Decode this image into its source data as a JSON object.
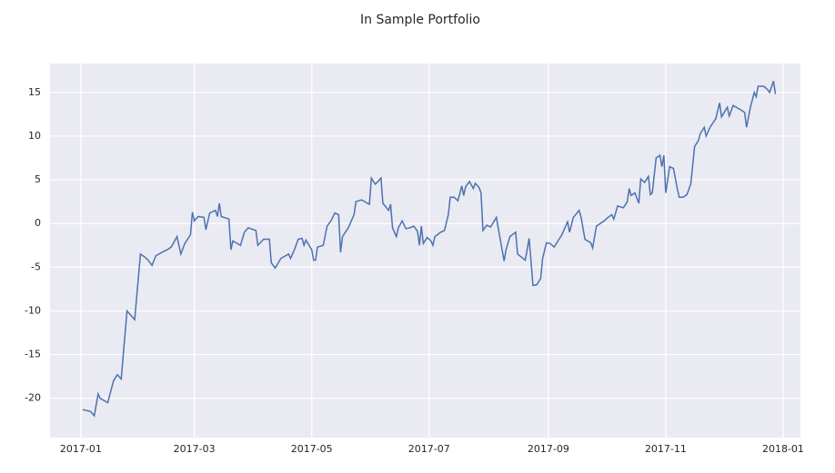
{
  "chart_data": {
    "type": "line",
    "title": "In Sample Portfolio",
    "x": [
      1,
      5,
      7,
      9,
      10,
      14,
      17,
      19,
      21,
      24,
      26,
      28,
      31,
      33,
      35,
      37,
      39,
      43,
      45,
      47,
      50,
      52,
      54,
      57,
      58,
      59,
      61,
      64,
      65,
      67,
      70,
      71,
      72,
      73,
      77,
      78,
      79,
      83,
      85,
      87,
      91,
      92,
      95,
      98,
      99,
      101,
      104,
      108,
      109,
      111,
      113,
      115,
      116,
      117,
      120,
      121,
      122,
      123,
      126,
      128,
      130,
      132,
      134,
      135,
      136,
      139,
      142,
      143,
      146,
      149,
      150,
      151,
      153,
      154,
      156,
      157,
      160,
      161,
      162,
      164,
      165,
      167,
      169,
      171,
      173,
      175,
      176,
      177,
      178,
      180,
      182,
      183,
      184,
      187,
      189,
      191,
      192,
      194,
      196,
      198,
      199,
      200,
      202,
      204,
      205,
      207,
      208,
      209,
      211,
      213,
      216,
      217,
      220,
      221,
      223,
      226,
      227,
      231,
      233,
      235,
      237,
      239,
      240,
      242,
      244,
      246,
      248,
      250,
      253,
      254,
      256,
      259,
      260,
      262,
      265,
      266,
      268,
      270,
      272,
      274,
      276,
      277,
      279,
      282,
      284,
      285,
      286,
      288,
      290,
      291,
      293,
      295,
      296,
      297,
      299,
      301,
      302,
      303,
      304,
      306,
      308,
      310,
      311,
      313,
      315,
      317,
      319,
      321,
      322,
      324,
      325,
      327,
      330,
      332,
      333,
      336,
      337,
      339,
      343,
      345,
      346,
      348,
      350,
      351,
      352,
      355,
      357,
      358,
      360,
      361
    ],
    "values": [
      -21.3,
      -21.5,
      -22,
      -19.5,
      -20,
      -20.5,
      -18,
      -17.3,
      -17.8,
      -10,
      -10.5,
      -11,
      -3.5,
      -3.8,
      -4.2,
      -4.8,
      -3.7,
      -3.2,
      -3,
      -2.7,
      -1.5,
      -3.5,
      -2.3,
      -1.3,
      1.3,
      0.3,
      0.8,
      0.7,
      -0.7,
      1.2,
      1.5,
      0.8,
      2.3,
      0.8,
      0.5,
      -3,
      -2,
      -2.5,
      -1,
      -0.5,
      -0.8,
      -2.5,
      -1.8,
      -1.8,
      -4.5,
      -5.1,
      -4,
      -3.5,
      -4,
      -3,
      -1.8,
      -1.7,
      -2.5,
      -1.9,
      -3,
      -4.2,
      -4.2,
      -2.7,
      -2.5,
      -0.3,
      0.3,
      1.2,
      1,
      -3.3,
      -1.5,
      -0.5,
      1,
      2.5,
      2.7,
      2.3,
      2.2,
      5.2,
      4.5,
      4.7,
      5.2,
      2.3,
      1.5,
      2.2,
      -0.5,
      -1.5,
      -0.5,
      0.3,
      -0.6,
      -0.5,
      -0.3,
      -0.9,
      -2.5,
      -0.3,
      -2.3,
      -1.6,
      -2,
      -2.5,
      -1.5,
      -1,
      -0.8,
      1,
      3,
      3,
      2.6,
      4.3,
      3.2,
      4.2,
      4.8,
      4,
      4.6,
      4.1,
      3.5,
      -0.8,
      -0.2,
      -0.4,
      0.7,
      -0.6,
      -4.3,
      -3,
      -1.5,
      -1,
      -3.5,
      -4.2,
      -1.7,
      -7.1,
      -7,
      -6.3,
      -4,
      -2.2,
      -2.3,
      -2.7,
      -2,
      -1.3,
      0.2,
      -1,
      0.7,
      1.5,
      0.7,
      -1.8,
      -2.2,
      -2.8,
      -0.3,
      0,
      0.3,
      0.7,
      1,
      0.5,
      2,
      1.8,
      2.5,
      4,
      3.2,
      3.5,
      2.3,
      5.1,
      4.7,
      5.4,
      3.3,
      3.5,
      7.5,
      7.8,
      6.5,
      7.8,
      3.5,
      6.5,
      6.3,
      4,
      3,
      3,
      3.3,
      4.5,
      8.8,
      9.5,
      10.3,
      11,
      10,
      11,
      12,
      13.8,
      12.2,
      13.3,
      12.3,
      13.5,
      13,
      12.7,
      11,
      13.3,
      15,
      14.5,
      15.7,
      15.7,
      15.3,
      15,
      16.3,
      14.8
    ],
    "color": "#4c72b0",
    "xlim": [
      -16,
      374
    ],
    "ylim": [
      -24.5,
      18.3
    ],
    "xticks": [
      {
        "value": 0,
        "label": "2017-01"
      },
      {
        "value": 59,
        "label": "2017-03"
      },
      {
        "value": 120,
        "label": "2017-05"
      },
      {
        "value": 181,
        "label": "2017-07"
      },
      {
        "value": 243,
        "label": "2017-09"
      },
      {
        "value": 304,
        "label": "2017-11"
      },
      {
        "value": 365,
        "label": "2018-01"
      }
    ],
    "yticks": [
      -20,
      -15,
      -10,
      -5,
      0,
      5,
      10,
      15
    ],
    "grid": true
  }
}
